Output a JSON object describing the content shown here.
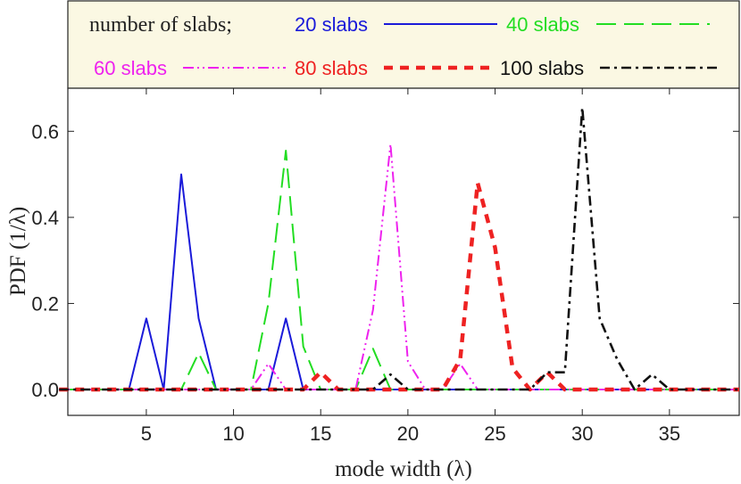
{
  "chart_data": {
    "type": "line",
    "title": "",
    "xlabel": "mode width (λ)",
    "ylabel": "PDF (1/λ)",
    "xlim": [
      0.5,
      39
    ],
    "ylim": [
      -0.06,
      0.7
    ],
    "xticks": [
      "5",
      "10",
      "15",
      "20",
      "25",
      "30",
      "35"
    ],
    "yticks": [
      "0.0",
      "0.2",
      "0.4",
      "0.6"
    ],
    "legend_title": "number of slabs;",
    "legend_position": "top",
    "x": [
      0,
      1,
      2,
      3,
      4,
      5,
      6,
      7,
      8,
      9,
      10,
      11,
      12,
      13,
      14,
      15,
      16,
      17,
      18,
      19,
      20,
      21,
      22,
      23,
      24,
      25,
      26,
      27,
      28,
      29,
      30,
      31,
      32,
      33,
      34,
      35,
      36,
      37,
      38,
      39
    ],
    "series": [
      {
        "name": "20 slabs",
        "color": "#1a1ad9",
        "dash": "solid",
        "values": [
          0,
          0,
          0,
          0,
          0,
          0.165,
          0,
          0.5,
          0.165,
          0,
          0,
          0,
          0,
          0.165,
          0,
          0,
          0,
          0,
          0,
          0,
          0,
          0,
          0,
          0,
          0,
          0,
          0,
          0,
          0,
          0,
          0,
          0,
          0,
          0,
          0,
          0,
          0,
          0,
          0,
          0
        ]
      },
      {
        "name": "40 slabs",
        "color": "#22dd22",
        "dash": "long-dash",
        "values": [
          0,
          0,
          0,
          0,
          0,
          0,
          0,
          0,
          0.085,
          0,
          0,
          0,
          0.2,
          0.555,
          0.1,
          0,
          0,
          0,
          0.095,
          0,
          0,
          0,
          0,
          0,
          0,
          0,
          0,
          0,
          0,
          0,
          0,
          0,
          0,
          0,
          0,
          0,
          0,
          0,
          0,
          0
        ]
      },
      {
        "name": "60 slabs",
        "color": "#ee22ee",
        "dash": "dash-dot-dot",
        "values": [
          0,
          0,
          0,
          0,
          0,
          0,
          0,
          0,
          0,
          0,
          0,
          0,
          0.06,
          0,
          0,
          0,
          0,
          0,
          0.185,
          0.57,
          0.065,
          0,
          0,
          0.06,
          0,
          0,
          0,
          0,
          0,
          0,
          0,
          0,
          0,
          0,
          0,
          0,
          0,
          0,
          0,
          0
        ]
      },
      {
        "name": "80 slabs",
        "color": "#ee2222",
        "dash": "thick-dash",
        "values": [
          0,
          0,
          0,
          0,
          0,
          0,
          0,
          0,
          0,
          0,
          0,
          0,
          0,
          0,
          0,
          0.04,
          0,
          0,
          0,
          0,
          0,
          0,
          0,
          0.07,
          0.48,
          0.33,
          0.05,
          0,
          0.04,
          0,
          0,
          0,
          0,
          0,
          0,
          0,
          0,
          0,
          0,
          0
        ]
      },
      {
        "name": "100 slabs",
        "color": "#111111",
        "dash": "dash-dot",
        "values": [
          0,
          0,
          0,
          0,
          0,
          0,
          0,
          0,
          0,
          0,
          0,
          0,
          0,
          0,
          0,
          0,
          0,
          0,
          0,
          0.035,
          0,
          0,
          0,
          0,
          0,
          0,
          0,
          0,
          0.04,
          0.04,
          0.655,
          0.165,
          0.07,
          0,
          0.035,
          0,
          0,
          0,
          0,
          0
        ]
      }
    ]
  }
}
